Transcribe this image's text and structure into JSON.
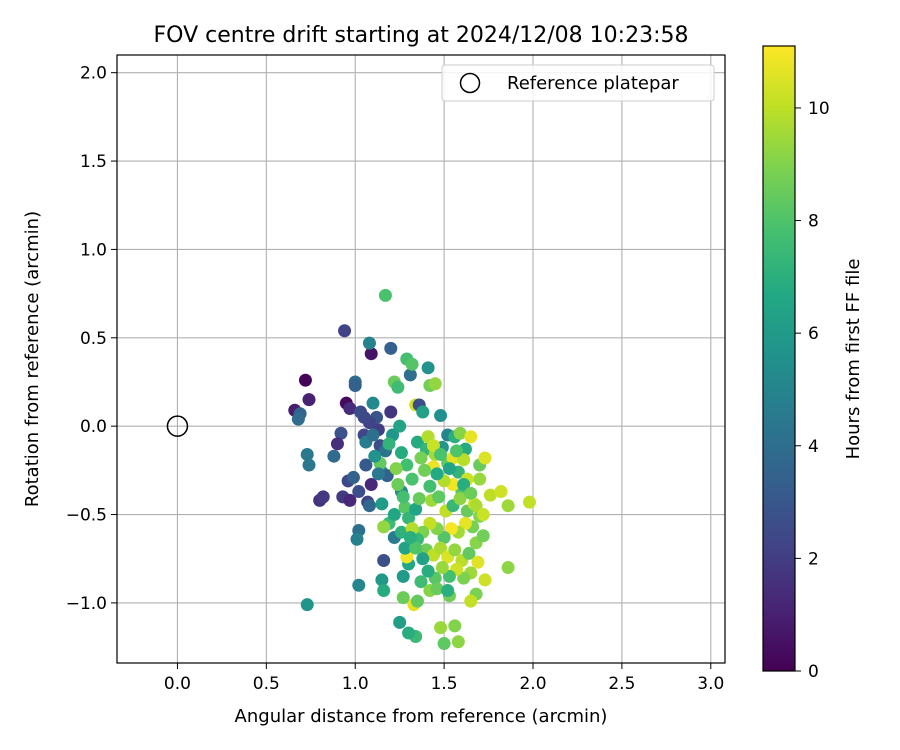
{
  "chart_data": {
    "type": "scatter",
    "title": "FOV centre drift starting at 2024/12/08 10:23:58",
    "xlabel": "Angular distance from reference (arcmin)",
    "ylabel": "Rotation from reference (arcmin)",
    "xlim": [
      -0.34,
      3.08
    ],
    "ylim": [
      -1.34,
      2.1
    ],
    "xticks": [
      0.0,
      0.5,
      1.0,
      1.5,
      2.0,
      2.5,
      3.0
    ],
    "yticks": [
      -1.0,
      -0.5,
      0.0,
      0.5,
      1.0,
      1.5,
      2.0
    ],
    "grid": true,
    "legend": {
      "placement": "top-right",
      "entries": [
        "Reference platepar"
      ]
    },
    "reference_point": {
      "x": 0.0,
      "y": 0.0,
      "label": "Reference platepar"
    },
    "colorbar": {
      "label": "Hours from first FF file",
      "colormap": "viridis",
      "range": [
        0,
        11.1
      ],
      "ticks": [
        0,
        2,
        4,
        6,
        8,
        10
      ]
    },
    "points": [
      [
        0.72,
        0.26,
        0.1
      ],
      [
        0.66,
        0.09,
        0.9
      ],
      [
        0.74,
        0.15,
        1.0
      ],
      [
        0.69,
        0.07,
        3.6
      ],
      [
        0.68,
        0.04,
        3.9
      ],
      [
        0.94,
        0.54,
        2.2
      ],
      [
        1.09,
        0.41,
        0.6
      ],
      [
        1.17,
        0.74,
        7.9
      ],
      [
        1.08,
        0.47,
        4.9
      ],
      [
        1.2,
        0.44,
        3.4
      ],
      [
        0.73,
        -0.16,
        4.5
      ],
      [
        0.74,
        -0.22,
        4.4
      ],
      [
        0.8,
        -0.42,
        1.6
      ],
      [
        0.82,
        -0.4,
        1.8
      ],
      [
        0.73,
        -1.01,
        5.7
      ],
      [
        0.88,
        -0.17,
        3.8
      ],
      [
        0.92,
        -0.04,
        2.8
      ],
      [
        0.95,
        0.13,
        0.3
      ],
      [
        0.97,
        0.1,
        1.4
      ],
      [
        1.0,
        0.25,
        3.9
      ],
      [
        1.0,
        0.23,
        3.5
      ],
      [
        0.9,
        -0.1,
        1.5
      ],
      [
        0.96,
        -0.31,
        2.4
      ],
      [
        0.93,
        -0.4,
        1.9
      ],
      [
        0.97,
        -0.42,
        1.2
      ],
      [
        0.99,
        -0.29,
        3.5
      ],
      [
        1.02,
        -0.37,
        2.6
      ],
      [
        1.02,
        -0.59,
        4.1
      ],
      [
        1.01,
        -0.64,
        4.8
      ],
      [
        1.02,
        -0.9,
        5.1
      ],
      [
        1.05,
        -0.05,
        2.3
      ],
      [
        1.06,
        -0.22,
        3.1
      ],
      [
        1.07,
        -0.43,
        2.2
      ],
      [
        1.09,
        -0.33,
        1.3
      ],
      [
        1.08,
        -0.45,
        3.7
      ],
      [
        1.1,
        0.13,
        5.2
      ],
      [
        1.12,
        0.05,
        2.9
      ],
      [
        1.13,
        -0.02,
        2.0
      ],
      [
        1.14,
        -0.11,
        2.6
      ],
      [
        1.15,
        -0.26,
        5.5
      ],
      [
        1.15,
        -0.44,
        6.1
      ],
      [
        1.16,
        -0.76,
        2.7
      ],
      [
        1.17,
        -0.14,
        4.2
      ],
      [
        1.18,
        -0.28,
        3.4
      ],
      [
        1.2,
        0.08,
        1.7
      ],
      [
        1.21,
        -0.05,
        5.8
      ],
      [
        1.22,
        0.25,
        8.5
      ],
      [
        1.24,
        0.22,
        7.6
      ],
      [
        1.25,
        0.0,
        6.4
      ],
      [
        1.26,
        -0.37,
        5.3
      ],
      [
        1.28,
        -0.46,
        8.2
      ],
      [
        1.29,
        0.38,
        7.8
      ],
      [
        1.31,
        0.29,
        4.0
      ],
      [
        1.32,
        0.35,
        8.1
      ],
      [
        1.34,
        0.12,
        10.3
      ],
      [
        1.36,
        0.12,
        2.6
      ],
      [
        1.38,
        0.08,
        6.3
      ],
      [
        1.41,
        0.33,
        5.6
      ],
      [
        1.42,
        0.23,
        8.7
      ],
      [
        1.45,
        0.24,
        9.3
      ],
      [
        1.48,
        0.06,
        5.5
      ],
      [
        1.52,
        -0.05,
        5.0
      ],
      [
        1.56,
        -0.06,
        7.0
      ],
      [
        1.59,
        -0.04,
        9.1
      ],
      [
        1.62,
        -0.13,
        6.8
      ],
      [
        1.65,
        -0.06,
        10.7
      ],
      [
        1.7,
        -0.22,
        8.5
      ],
      [
        1.73,
        -0.18,
        10.5
      ],
      [
        1.7,
        -0.3,
        9.4
      ],
      [
        1.76,
        -0.39,
        10.0
      ],
      [
        1.82,
        -0.37,
        10.3
      ],
      [
        1.86,
        -0.45,
        9.5
      ],
      [
        1.98,
        -0.43,
        10.1
      ],
      [
        1.86,
        -0.8,
        9.2
      ],
      [
        1.73,
        -0.87,
        10.3
      ],
      [
        1.68,
        -0.95,
        8.9
      ],
      [
        1.65,
        -0.99,
        10.1
      ],
      [
        1.53,
        -0.96,
        8.7
      ],
      [
        1.48,
        -1.14,
        9.4
      ],
      [
        1.56,
        -1.13,
        9.0
      ],
      [
        1.58,
        -1.22,
        9.2
      ],
      [
        1.5,
        -1.23,
        8.3
      ],
      [
        1.34,
        -1.19,
        7.5
      ],
      [
        1.3,
        -1.17,
        6.9
      ],
      [
        1.25,
        -1.11,
        6.2
      ],
      [
        1.33,
        -1.01,
        10.6
      ],
      [
        1.35,
        -0.99,
        8.4
      ],
      [
        1.27,
        -0.97,
        8.6
      ],
      [
        1.15,
        -0.87,
        5.9
      ],
      [
        1.16,
        -0.93,
        6.8
      ],
      [
        1.27,
        -0.85,
        6.0
      ],
      [
        1.3,
        -0.78,
        6.6
      ],
      [
        1.29,
        -0.74,
        10.9
      ],
      [
        1.28,
        -0.69,
        6.4
      ],
      [
        1.22,
        -0.63,
        4.6
      ],
      [
        1.26,
        -0.6,
        7.1
      ],
      [
        1.19,
        -0.55,
        7.5
      ],
      [
        1.16,
        -0.57,
        9.3
      ],
      [
        1.22,
        -0.5,
        6.6
      ],
      [
        1.3,
        -0.52,
        7.3
      ],
      [
        1.34,
        -0.47,
        6.5
      ],
      [
        1.36,
        -0.41,
        8.5
      ],
      [
        1.32,
        -0.3,
        7.9
      ],
      [
        1.29,
        -0.22,
        7.7
      ],
      [
        1.26,
        -0.15,
        6.8
      ],
      [
        1.23,
        -0.24,
        9.0
      ],
      [
        1.19,
        -0.1,
        7.2
      ],
      [
        1.14,
        -0.21,
        8.4
      ],
      [
        1.11,
        -0.17,
        5.6
      ],
      [
        1.13,
        -0.27,
        4.5
      ],
      [
        1.35,
        -0.09,
        6.8
      ],
      [
        1.4,
        -0.13,
        7.3
      ],
      [
        1.45,
        -0.16,
        9.6
      ],
      [
        1.44,
        -0.23,
        10.8
      ],
      [
        1.49,
        -0.12,
        5.7
      ],
      [
        1.52,
        -0.21,
        8.3
      ],
      [
        1.55,
        -0.18,
        10.6
      ],
      [
        1.58,
        -0.26,
        7.2
      ],
      [
        1.61,
        -0.19,
        9.9
      ],
      [
        1.63,
        -0.3,
        10.2
      ],
      [
        1.6,
        -0.37,
        8.1
      ],
      [
        1.55,
        -0.33,
        10.9
      ],
      [
        1.5,
        -0.31,
        9.8
      ],
      [
        1.46,
        -0.27,
        6.7
      ],
      [
        1.42,
        -0.34,
        7.7
      ],
      [
        1.39,
        -0.25,
        8.7
      ],
      [
        1.43,
        -0.42,
        9.5
      ],
      [
        1.47,
        -0.4,
        8.3
      ],
      [
        1.51,
        -0.48,
        10.0
      ],
      [
        1.55,
        -0.45,
        7.4
      ],
      [
        1.59,
        -0.41,
        9.2
      ],
      [
        1.63,
        -0.48,
        8.5
      ],
      [
        1.67,
        -0.44,
        10.4
      ],
      [
        1.7,
        -0.51,
        9.0
      ],
      [
        1.66,
        -0.57,
        8.8
      ],
      [
        1.62,
        -0.55,
        10.7
      ],
      [
        1.58,
        -0.6,
        9.6
      ],
      [
        1.54,
        -0.58,
        11.0
      ],
      [
        1.5,
        -0.63,
        8.1
      ],
      [
        1.46,
        -0.58,
        9.0
      ],
      [
        1.42,
        -0.55,
        10.1
      ],
      [
        1.38,
        -0.6,
        8.9
      ],
      [
        1.35,
        -0.64,
        7.4
      ],
      [
        1.32,
        -0.58,
        9.8
      ],
      [
        1.4,
        -0.7,
        8.6
      ],
      [
        1.44,
        -0.73,
        10.0
      ],
      [
        1.48,
        -0.69,
        9.7
      ],
      [
        1.52,
        -0.74,
        10.5
      ],
      [
        1.56,
        -0.7,
        9.3
      ],
      [
        1.6,
        -0.76,
        9.9
      ],
      [
        1.64,
        -0.72,
        8.4
      ],
      [
        1.68,
        -0.66,
        9.1
      ],
      [
        1.72,
        -0.62,
        8.7
      ],
      [
        1.69,
        -0.77,
        10.6
      ],
      [
        1.65,
        -0.83,
        9.5
      ],
      [
        1.61,
        -0.86,
        8.9
      ],
      [
        1.57,
        -0.81,
        10.3
      ],
      [
        1.53,
        -0.85,
        7.8
      ],
      [
        1.49,
        -0.8,
        9.4
      ],
      [
        1.45,
        -0.86,
        8.2
      ],
      [
        1.41,
        -0.82,
        6.9
      ],
      [
        1.37,
        -0.88,
        7.6
      ],
      [
        1.42,
        -0.93,
        9.1
      ],
      [
        1.46,
        -0.92,
        8.5
      ],
      [
        1.52,
        -0.93,
        7.0
      ],
      [
        1.38,
        -0.75,
        6.3
      ],
      [
        1.34,
        -0.69,
        8.0
      ],
      [
        1.31,
        -0.63,
        7.0
      ],
      [
        1.27,
        -0.4,
        7.8
      ],
      [
        1.24,
        -0.33,
        8.6
      ],
      [
        1.37,
        -0.18,
        8.8
      ],
      [
        1.41,
        -0.06,
        9.8
      ],
      [
        1.44,
        -0.11,
        10.2
      ],
      [
        1.48,
        -0.16,
        7.9
      ],
      [
        1.53,
        -0.24,
        6.5
      ],
      [
        1.57,
        -0.14,
        8.0
      ],
      [
        1.61,
        -0.33,
        6.9
      ],
      [
        1.65,
        -0.38,
        8.6
      ],
      [
        1.68,
        -0.45,
        9.7
      ],
      [
        1.72,
        -0.5,
        10.2
      ],
      [
        1.08,
        0.02,
        2.2
      ],
      [
        1.05,
        0.05,
        2.4
      ],
      [
        1.03,
        0.08,
        2.5
      ],
      [
        1.06,
        -0.09,
        4.6
      ],
      [
        1.1,
        -0.05,
        4.1
      ]
    ]
  }
}
